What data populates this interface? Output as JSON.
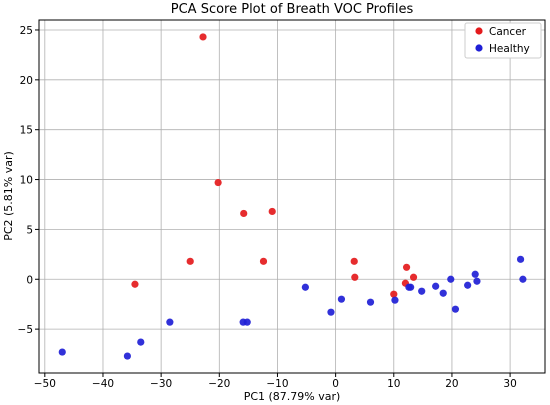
{
  "chart_data": {
    "type": "scatter",
    "title": "PCA Score Plot of Breath VOC Profiles",
    "xlabel": "PC1 (87.79% var)",
    "ylabel": "PC2 (5.81% var)",
    "xlim": [
      -51,
      36
    ],
    "ylim": [
      -9.4,
      26
    ],
    "xticks": [
      -50,
      -40,
      -30,
      -20,
      -10,
      0,
      10,
      20,
      30
    ],
    "yticks": [
      -5,
      0,
      5,
      10,
      15,
      20,
      25
    ],
    "grid": true,
    "legend_position": "top-right",
    "series": [
      {
        "name": "Cancer",
        "color": "#e41a1c",
        "points": [
          [
            -22.8,
            24.3
          ],
          [
            -20.2,
            9.7
          ],
          [
            -15.8,
            6.6
          ],
          [
            -10.9,
            6.8
          ],
          [
            -25.0,
            1.8
          ],
          [
            -12.4,
            1.8
          ],
          [
            -34.5,
            -0.5
          ],
          [
            3.2,
            1.8
          ],
          [
            3.3,
            0.2
          ],
          [
            10.0,
            -1.5
          ],
          [
            12.0,
            -0.4
          ],
          [
            12.2,
            1.2
          ],
          [
            13.4,
            0.2
          ]
        ]
      },
      {
        "name": "Healthy",
        "color": "#1f1fd6",
        "points": [
          [
            -47.0,
            -7.3
          ],
          [
            -35.8,
            -7.7
          ],
          [
            -33.5,
            -6.3
          ],
          [
            -28.5,
            -4.3
          ],
          [
            -15.9,
            -4.3
          ],
          [
            -15.2,
            -4.3
          ],
          [
            -5.2,
            -0.8
          ],
          [
            -0.8,
            -3.3
          ],
          [
            1.0,
            -2.0
          ],
          [
            6.0,
            -2.3
          ],
          [
            10.2,
            -2.1
          ],
          [
            12.6,
            -0.8
          ],
          [
            12.9,
            -0.8
          ],
          [
            14.8,
            -1.2
          ],
          [
            17.2,
            -0.7
          ],
          [
            18.5,
            -1.4
          ],
          [
            19.8,
            0.0
          ],
          [
            20.6,
            -3.0
          ],
          [
            22.7,
            -0.6
          ],
          [
            24.0,
            0.5
          ],
          [
            24.3,
            -0.2
          ],
          [
            31.8,
            2.0
          ],
          [
            32.2,
            0.0
          ]
        ]
      }
    ]
  }
}
